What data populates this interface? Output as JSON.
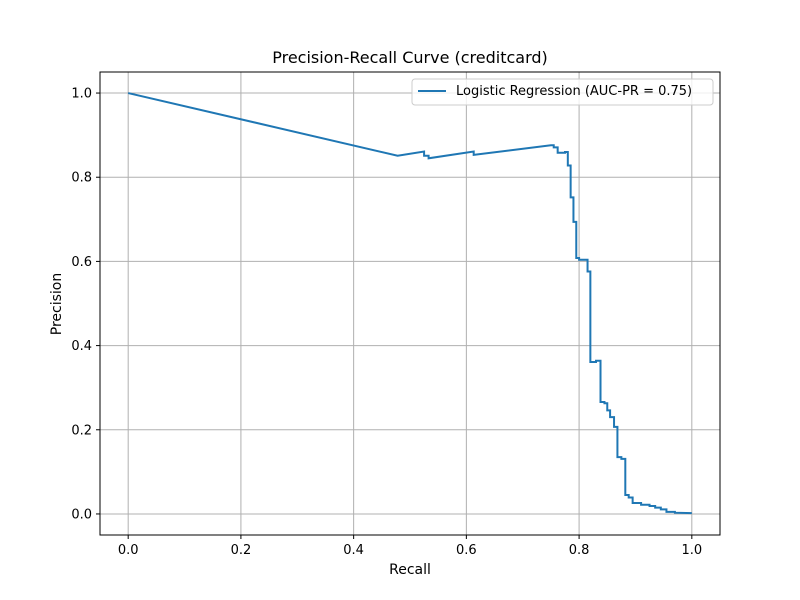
{
  "chart_data": {
    "type": "line",
    "title": "Precision-Recall Curve (creditcard)",
    "xlabel": "Recall",
    "ylabel": "Precision",
    "xlim": [
      -0.05,
      1.05
    ],
    "ylim": [
      -0.05,
      1.05
    ],
    "x_ticks": [
      0.0,
      0.2,
      0.4,
      0.6,
      0.8,
      1.0
    ],
    "x_tick_labels": [
      "0.0",
      "0.2",
      "0.4",
      "0.6",
      "0.8",
      "1.0"
    ],
    "y_ticks": [
      0.0,
      0.2,
      0.4,
      0.6,
      0.8,
      1.0
    ],
    "y_tick_labels": [
      "0.0",
      "0.2",
      "0.4",
      "0.6",
      "0.8",
      "1.0"
    ],
    "grid": true,
    "legend_position": "top-right",
    "series": [
      {
        "name": "Logistic Regression (AUC-PR = 0.75)",
        "color": "#1f77b4",
        "x": [
          0.0,
          0.478,
          0.525,
          0.525,
          0.533,
          0.533,
          0.613,
          0.613,
          0.75,
          0.755,
          0.755,
          0.762,
          0.762,
          0.775,
          0.775,
          0.78,
          0.78,
          0.785,
          0.785,
          0.79,
          0.79,
          0.795,
          0.795,
          0.8,
          0.8,
          0.815,
          0.815,
          0.82,
          0.82,
          0.83,
          0.83,
          0.838,
          0.838,
          0.845,
          0.845,
          0.85,
          0.85,
          0.855,
          0.855,
          0.862,
          0.862,
          0.868,
          0.868,
          0.875,
          0.875,
          0.882,
          0.882,
          0.888,
          0.888,
          0.895,
          0.895,
          0.91,
          0.91,
          0.925,
          0.925,
          0.935,
          0.935,
          0.945,
          0.945,
          0.955,
          0.955,
          0.97,
          0.97,
          1.0
        ],
        "y": [
          1.0,
          0.851,
          0.861,
          0.851,
          0.851,
          0.845,
          0.861,
          0.853,
          0.876,
          0.876,
          0.871,
          0.871,
          0.858,
          0.858,
          0.86,
          0.86,
          0.828,
          0.828,
          0.752,
          0.752,
          0.694,
          0.694,
          0.608,
          0.608,
          0.604,
          0.604,
          0.576,
          0.576,
          0.361,
          0.361,
          0.364,
          0.364,
          0.266,
          0.266,
          0.263,
          0.263,
          0.246,
          0.246,
          0.23,
          0.23,
          0.207,
          0.207,
          0.135,
          0.135,
          0.131,
          0.131,
          0.045,
          0.045,
          0.039,
          0.039,
          0.026,
          0.026,
          0.022,
          0.022,
          0.019,
          0.019,
          0.015,
          0.015,
          0.011,
          0.011,
          0.005,
          0.005,
          0.003,
          0.002
        ]
      }
    ]
  }
}
